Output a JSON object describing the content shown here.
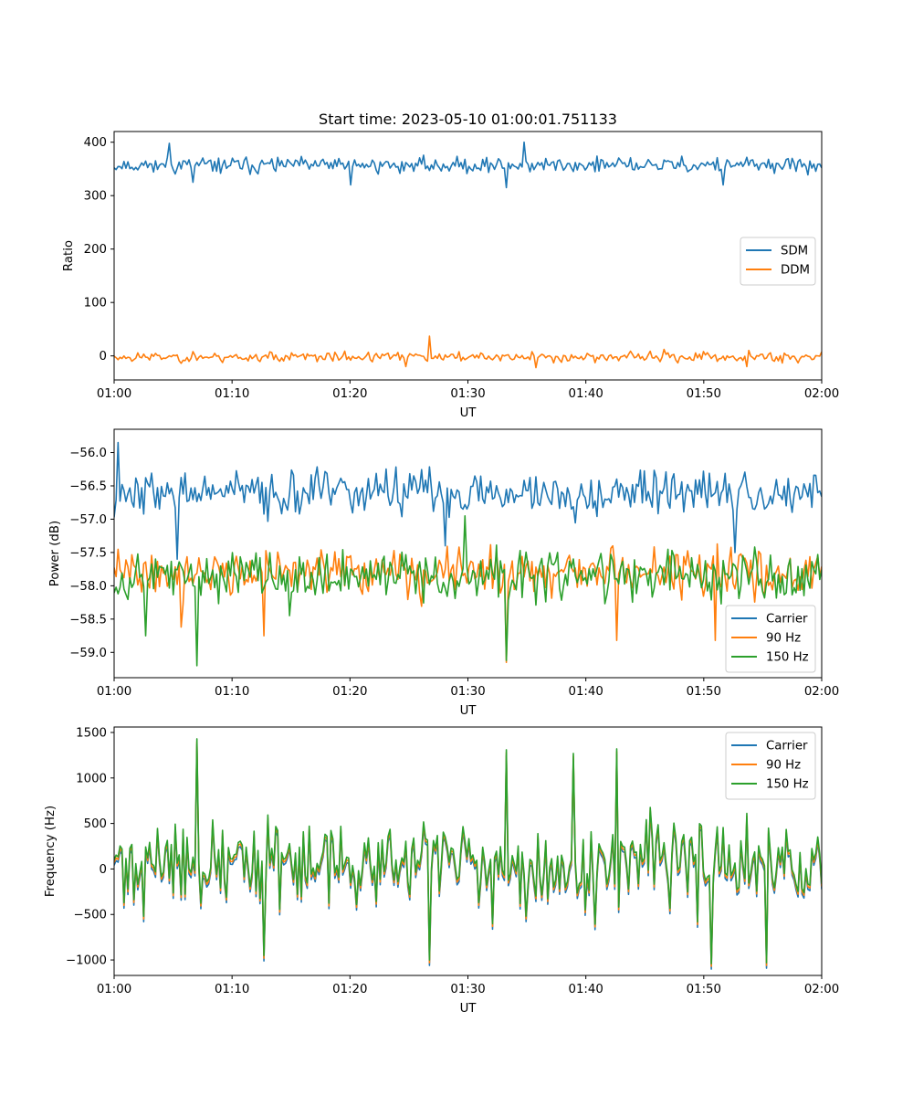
{
  "figure": {
    "title": "Start time: 2023-05-10 01:00:01.751133"
  },
  "colors": {
    "blue": "#1f77b4",
    "orange": "#ff7f0e",
    "green": "#2ca02c"
  },
  "chart_data": [
    {
      "type": "line",
      "title": "Start time: 2023-05-10 01:00:01.751133",
      "xlabel": "UT",
      "ylabel": "Ratio",
      "x_range": [
        "01:00",
        "02:00"
      ],
      "x_ticks": [
        "01:00",
        "01:10",
        "01:20",
        "01:30",
        "01:40",
        "01:50",
        "02:00"
      ],
      "ylim": [
        -45,
        420
      ],
      "y_ticks": [
        0,
        100,
        200,
        300,
        400
      ],
      "y_tick_labels": [
        "0",
        "100",
        "200",
        "300",
        "400"
      ],
      "legend_position": "center-right",
      "series": [
        {
          "name": "SDM",
          "color": "#1f77b4",
          "mean": 357,
          "spread": 12,
          "seed": 11,
          "samples": 360,
          "peaks": [
            {
              "t": "01:04:40",
              "v": 398
            },
            {
              "t": "01:34:50",
              "v": 400
            },
            {
              "t": "01:20:00",
              "v": 320
            },
            {
              "t": "01:33:20",
              "v": 315
            },
            {
              "t": "01:51:40",
              "v": 320
            },
            {
              "t": "01:06:40",
              "v": 325
            }
          ]
        },
        {
          "name": "DDM",
          "color": "#ff7f0e",
          "mean": -2,
          "spread": 8,
          "seed": 23,
          "samples": 360,
          "peaks": [
            {
              "t": "01:26:40",
              "v": 37
            },
            {
              "t": "01:35:50",
              "v": -22
            },
            {
              "t": "01:24:40",
              "v": -20
            },
            {
              "t": "01:53:40",
              "v": -20
            }
          ]
        }
      ]
    },
    {
      "type": "line",
      "xlabel": "UT",
      "ylabel": "Power (dB)",
      "x_range": [
        "01:00",
        "02:00"
      ],
      "x_ticks": [
        "01:00",
        "01:10",
        "01:20",
        "01:30",
        "01:40",
        "01:50",
        "02:00"
      ],
      "ylim": [
        -59.38,
        -55.65
      ],
      "y_ticks": [
        -59.0,
        -58.5,
        -58.0,
        -57.5,
        -57.0,
        -56.5,
        -56.0
      ],
      "y_tick_labels": [
        "−59.0",
        "−58.5",
        "−58.0",
        "−57.5",
        "−57.0",
        "−56.5",
        "−56.0"
      ],
      "legend_position": "lower-right",
      "series": [
        {
          "name": "Carrier",
          "color": "#1f77b4",
          "mean": -56.6,
          "spread": 0.28,
          "seed": 37,
          "samples": 360,
          "peaks": [
            {
              "t": "01:00:20",
              "v": -55.85
            },
            {
              "t": "01:05:20",
              "v": -57.6
            },
            {
              "t": "01:28:00",
              "v": -57.4
            },
            {
              "t": "01:52:40",
              "v": -57.5
            }
          ]
        },
        {
          "name": "90 Hz",
          "color": "#ff7f0e",
          "mean": -57.8,
          "spread": 0.28,
          "seed": 41,
          "samples": 360,
          "peaks": [
            {
              "t": "01:33:20",
              "v": -59.15
            },
            {
              "t": "01:05:40",
              "v": -58.62
            },
            {
              "t": "01:12:40",
              "v": -58.75
            },
            {
              "t": "01:42:40",
              "v": -58.82
            },
            {
              "t": "01:51:00",
              "v": -58.82
            }
          ]
        },
        {
          "name": "150 Hz",
          "color": "#2ca02c",
          "mean": -57.85,
          "spread": 0.32,
          "seed": 53,
          "samples": 360,
          "peaks": [
            {
              "t": "01:07:00",
              "v": -59.2
            },
            {
              "t": "01:33:20",
              "v": -59.12
            },
            {
              "t": "01:02:40",
              "v": -58.75
            },
            {
              "t": "01:29:40",
              "v": -56.95
            }
          ]
        }
      ]
    },
    {
      "type": "line",
      "xlabel": "UT",
      "ylabel": "Frequency (Hz)",
      "x_range": [
        "01:00",
        "02:00"
      ],
      "x_ticks": [
        "01:00",
        "01:10",
        "01:20",
        "01:30",
        "01:40",
        "01:50",
        "02:00"
      ],
      "ylim": [
        -1170,
        1560
      ],
      "y_ticks": [
        -1000,
        -500,
        0,
        500,
        1000,
        1500
      ],
      "y_tick_labels": [
        "−1000",
        "−500",
        "0",
        "500",
        "1000",
        "1500"
      ],
      "legend_position": "upper-right",
      "series": [
        {
          "name": "Carrier",
          "color": "#1f77b4",
          "offset": -60,
          "seed": 71,
          "samples": 360
        },
        {
          "name": "90 Hz",
          "color": "#ff7f0e",
          "offset": -30,
          "seed": 71,
          "samples": 360
        },
        {
          "name": "150 Hz",
          "color": "#2ca02c",
          "offset": 0,
          "mean": 60,
          "spread": 380,
          "seed": 71,
          "samples": 360,
          "peaks": [
            {
              "t": "01:07:00",
              "v": 1430
            },
            {
              "t": "01:42:40",
              "v": 1320
            },
            {
              "t": "01:33:20",
              "v": 1310
            },
            {
              "t": "01:39:00",
              "v": 1270
            },
            {
              "t": "01:26:40",
              "v": -1000
            },
            {
              "t": "01:50:40",
              "v": -1040
            },
            {
              "t": "01:55:20",
              "v": -1030
            },
            {
              "t": "01:12:40",
              "v": -950
            }
          ]
        }
      ]
    }
  ]
}
